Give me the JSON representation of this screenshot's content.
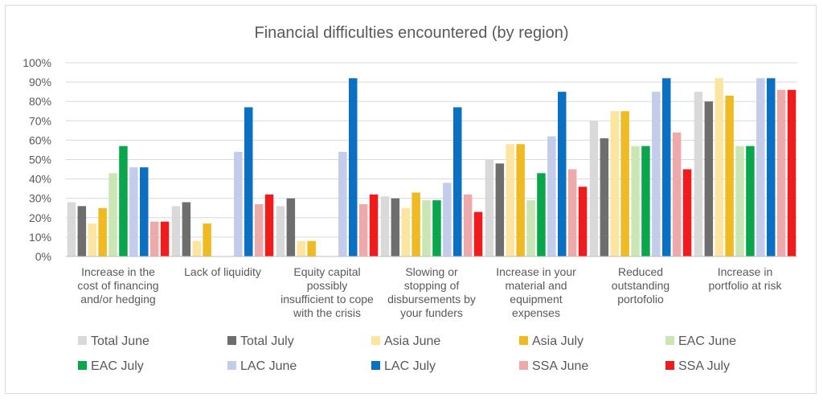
{
  "chart_data": {
    "type": "bar",
    "title": "Financial difficulties encountered (by region)",
    "xlabel": "",
    "ylabel": "",
    "ylim": [
      0,
      100
    ],
    "yticks": [
      "0%",
      "10%",
      "20%",
      "30%",
      "40%",
      "50%",
      "60%",
      "70%",
      "80%",
      "90%",
      "100%"
    ],
    "categories": [
      "Increase in the cost of financing and/or hedging",
      "Lack of liquidity",
      "Equity capital possibly insufficient to cope with the crisis",
      "Slowing or stopping of disbursements by your funders",
      "Increase in your material and equipment expenses",
      "Reduced outstanding portofolio",
      "Increase in portfolio at risk"
    ],
    "category_lines": [
      [
        "Increase in the",
        "cost of financing",
        "and/or hedging"
      ],
      [
        "Lack of liquidity"
      ],
      [
        "Equity capital",
        "possibly",
        "insufficient to cope",
        "with the crisis"
      ],
      [
        "Slowing or",
        "stopping of",
        "disbursements by",
        "your funders"
      ],
      [
        "Increase in your",
        "material and",
        "equipment",
        "expenses"
      ],
      [
        "Reduced",
        "outstanding",
        "portofolio"
      ],
      [
        "Increase in",
        "portfolio at risk"
      ]
    ],
    "series": [
      {
        "name": "Total June",
        "color": "#d9d9d9",
        "values": [
          28,
          26,
          26,
          31,
          50,
          70,
          85
        ]
      },
      {
        "name": "Total July",
        "color": "#6e6e6e",
        "values": [
          26,
          28,
          30,
          30,
          48,
          61,
          80
        ]
      },
      {
        "name": "Asia June",
        "color": "#fbe5a0",
        "values": [
          17,
          8,
          8,
          25,
          58,
          75,
          92
        ]
      },
      {
        "name": "Asia July",
        "color": "#f0bb22",
        "values": [
          25,
          17,
          8,
          33,
          58,
          75,
          83
        ]
      },
      {
        "name": "EAC June",
        "color": "#c9e6b4",
        "values": [
          43,
          0,
          0,
          29,
          29,
          57,
          57
        ]
      },
      {
        "name": "EAC July",
        "color": "#0aa64b",
        "values": [
          57,
          0,
          0,
          29,
          43,
          57,
          57
        ]
      },
      {
        "name": "LAC June",
        "color": "#c3cceb",
        "values": [
          46,
          54,
          54,
          38,
          62,
          85,
          92
        ]
      },
      {
        "name": "LAC July",
        "color": "#0b6fc2",
        "values": [
          46,
          77,
          92,
          77,
          85,
          92,
          92
        ]
      },
      {
        "name": "SSA June",
        "color": "#eeaaaa",
        "values": [
          18,
          27,
          27,
          32,
          45,
          64,
          86
        ]
      },
      {
        "name": "SSA July",
        "color": "#ee1c1c",
        "values": [
          18,
          32,
          32,
          23,
          36,
          45,
          86
        ]
      }
    ],
    "grid": true,
    "legend_position": "bottom"
  }
}
